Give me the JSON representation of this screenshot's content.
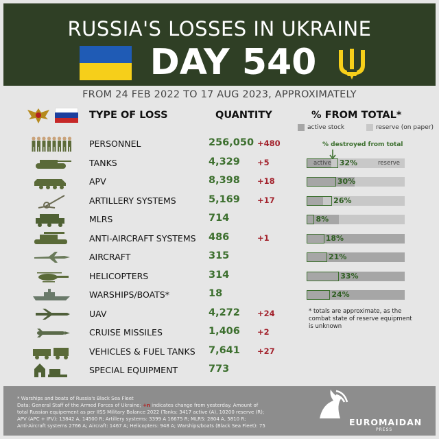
{
  "header": {
    "title": "RUSSIA'S LOSSES IN UKRAINE",
    "day": "DAY 540"
  },
  "subtitle": "FROM 24 FEB 2022 TO 17 AUG 2023, APPROXIMATELY",
  "columns": {
    "type": "TYPE OF LOSS",
    "quantity": "QUANTITY",
    "percent": "% FROM TOTAL*"
  },
  "legend": {
    "active": "active stock",
    "reserve": "reserve (on paper)",
    "destroyed": "% destroyed from total",
    "bar_active": "active",
    "bar_reserve": "reserve"
  },
  "colors": {
    "header_bg": "#2f3f25",
    "quantity": "#3c6f2e",
    "change": "#a3232d",
    "active_stock": "#a6a6a6",
    "reserve": "#c8c8c8"
  },
  "rows": [
    {
      "icon": "soldiers-icon",
      "name": "PERSONNEL",
      "quantity": "256,050",
      "change": "+480"
    },
    {
      "icon": "tank-icon",
      "name": "TANKS",
      "quantity": "4,329",
      "change": "+5",
      "pct_label": "32%",
      "destroyed_pct": 32,
      "active_share_pct": 25
    },
    {
      "icon": "apv-icon",
      "name": "APV",
      "quantity": "8,398",
      "change": "+18",
      "pct_label": "30%",
      "destroyed_pct": 30,
      "active_share_pct": 49
    },
    {
      "icon": "artillery-icon",
      "name": "ARTILLERY SYSTEMS",
      "quantity": "5,169",
      "change": "+17",
      "pct_label": "26%",
      "destroyed_pct": 26,
      "active_share_pct": 17
    },
    {
      "icon": "mlrs-icon",
      "name": "MLRS",
      "quantity": "714",
      "change": "",
      "pct_label": "8%",
      "destroyed_pct": 8,
      "active_share_pct": 33
    },
    {
      "icon": "anti-aircraft-icon",
      "name": "ANTI-AIRCRAFT SYSTEMS",
      "quantity": "486",
      "change": "+1",
      "pct_label": "18%",
      "destroyed_pct": 18,
      "active_share_pct": 100
    },
    {
      "icon": "aircraft-icon",
      "name": "AIRCRAFT",
      "quantity": "315",
      "change": "",
      "pct_label": "21%",
      "destroyed_pct": 21,
      "active_share_pct": 100
    },
    {
      "icon": "helicopter-icon",
      "name": "HELICOPTERS",
      "quantity": "314",
      "change": "",
      "pct_label": "33%",
      "destroyed_pct": 33,
      "active_share_pct": 100
    },
    {
      "icon": "warship-icon",
      "name": "WARSHIPS/BOATS*",
      "quantity": "18",
      "change": "",
      "pct_label": "24%",
      "destroyed_pct": 24,
      "active_share_pct": 100
    },
    {
      "icon": "uav-icon",
      "name": "UAV",
      "quantity": "4,272",
      "change": "+24"
    },
    {
      "icon": "cruise-missile-icon",
      "name": "CRUISE MISSILES",
      "quantity": "1,406",
      "change": "+2"
    },
    {
      "icon": "vehicles-icon",
      "name": "VEHICLES & FUEL TANKS",
      "quantity": "7,641",
      "change": "+27"
    },
    {
      "icon": "special-equipment-icon",
      "name": "SPECIAL EQUIPMENT",
      "quantity": "773",
      "change": ""
    }
  ],
  "footnote": "* totals are approximate, as the combat state of reserve equipment is unknown",
  "footer": {
    "line1": "* Warships and boats of Russia's Black Sea Fleet",
    "line2_a": "Data: General Staff of the Armed Forces of Ukraine; ",
    "line2_plus": "+n",
    "line2_b": " indicates change from yesterday. Amount of",
    "line3": "total Russian equipement as per IISS Military Balance 2022 (Tanks: 3417 active (A), 10200 reserve (R);",
    "line4": "APV (APC + IFV): 13842 A, 14500 R; Artillery systems: 3399 A 16675 R; MLRS: 2804 A, 5810 R;",
    "line5": "Anti-Aircraft systems 2766 A; Aircraft: 1467 A; Helicopters: 948 A; Warships/boats (Black Sea Fleet): 75",
    "logo": "EUROMAIDAN",
    "logo_sub": "PRESS"
  }
}
